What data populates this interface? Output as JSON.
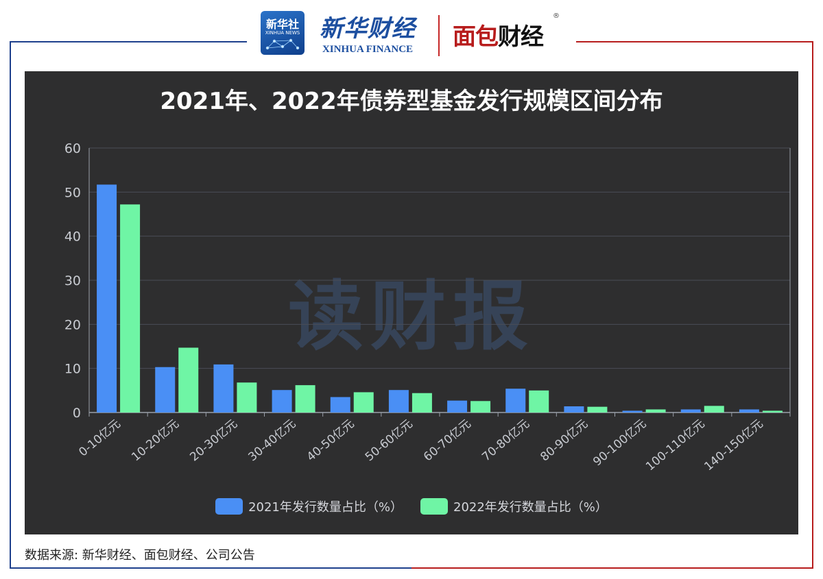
{
  "header": {
    "xinhua_badge_cn": "新华社",
    "xinhua_badge_en": "XINHUA NEWS",
    "xinhua_finance_cn": "新华财经",
    "xinhua_finance_en": "XINHUA FINANCE",
    "mianbao_red": "面包",
    "mianbao_black": "财经",
    "registered_mark": "®"
  },
  "watermark": "读财报",
  "source": "数据来源: 新华财经、面包财经、公司公告",
  "colors": {
    "series_2021": "#4a8ff5",
    "series_2022": "#6ff5a5",
    "panel_bg": "#2e2e2f",
    "axis_text": "#c9ccd2",
    "grid": "#4a4d57"
  },
  "chart_data": {
    "type": "bar",
    "title": "2021年、2022年债券型基金发行规模区间分布",
    "categories": [
      "0-10亿元",
      "10-20亿元",
      "20-30亿元",
      "30-40亿元",
      "40-50亿元",
      "50-60亿元",
      "60-70亿元",
      "70-80亿元",
      "80-90亿元",
      "90-100亿元",
      "100-110亿元",
      "140-150亿元"
    ],
    "series": [
      {
        "name": "2021年发行数量占比（%）",
        "values": [
          51.7,
          10.3,
          10.9,
          5.1,
          3.5,
          5.1,
          2.7,
          5.4,
          1.4,
          0.4,
          0.7,
          0.7
        ]
      },
      {
        "name": "2022年发行数量占比（%）",
        "values": [
          47.2,
          14.7,
          6.8,
          6.2,
          4.6,
          4.4,
          2.6,
          5.0,
          1.3,
          0.7,
          1.5,
          0.4
        ]
      }
    ],
    "yticks": [
      0,
      10,
      20,
      30,
      40,
      50,
      60
    ],
    "ylim": [
      0,
      60
    ],
    "grid": true,
    "legend_position": "bottom-center"
  }
}
